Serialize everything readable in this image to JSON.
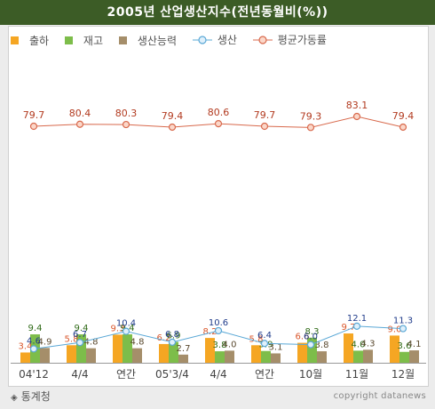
{
  "chart_data": {
    "type": "bar",
    "title": "2005년 산업생산지수(전년동월비(%))",
    "categories": [
      "04'12",
      "4/4",
      "연간",
      "05'3/4",
      "4/4",
      "연간",
      "10월",
      "11월",
      "12월"
    ],
    "series": [
      {
        "name": "출하",
        "type": "bar",
        "values": [
          3.4,
          5.8,
          9.3,
          6.2,
          8.2,
          5.8,
          6.6,
          9.7,
          9.0
        ]
      },
      {
        "name": "재고",
        "type": "bar",
        "values": [
          9.4,
          9.4,
          9.4,
          6.9,
          3.8,
          3.9,
          8.3,
          4.0,
          3.6
        ]
      },
      {
        "name": "생산능력",
        "type": "bar",
        "values": [
          4.9,
          4.8,
          4.8,
          2.7,
          4.0,
          3.1,
          3.8,
          4.3,
          4.1
        ]
      },
      {
        "name": "생산",
        "type": "line",
        "values": [
          4.6,
          6.7,
          10.4,
          6.8,
          10.6,
          6.4,
          6.0,
          12.1,
          11.3
        ]
      },
      {
        "name": "평균가동률",
        "type": "line",
        "values": [
          79.7,
          80.4,
          80.3,
          79.4,
          80.6,
          79.7,
          79.3,
          83.1,
          79.4
        ]
      }
    ],
    "colors": {
      "출하": "#f5a623",
      "재고": "#7dbd4a",
      "생산능력": "#a58e6a",
      "생산": "#5aa8d6",
      "평균가동률": "#d8694c"
    },
    "legend_position": "top-left",
    "grid": false
  },
  "footer": {
    "source": "통계청",
    "copyright": "copyright datanews"
  }
}
